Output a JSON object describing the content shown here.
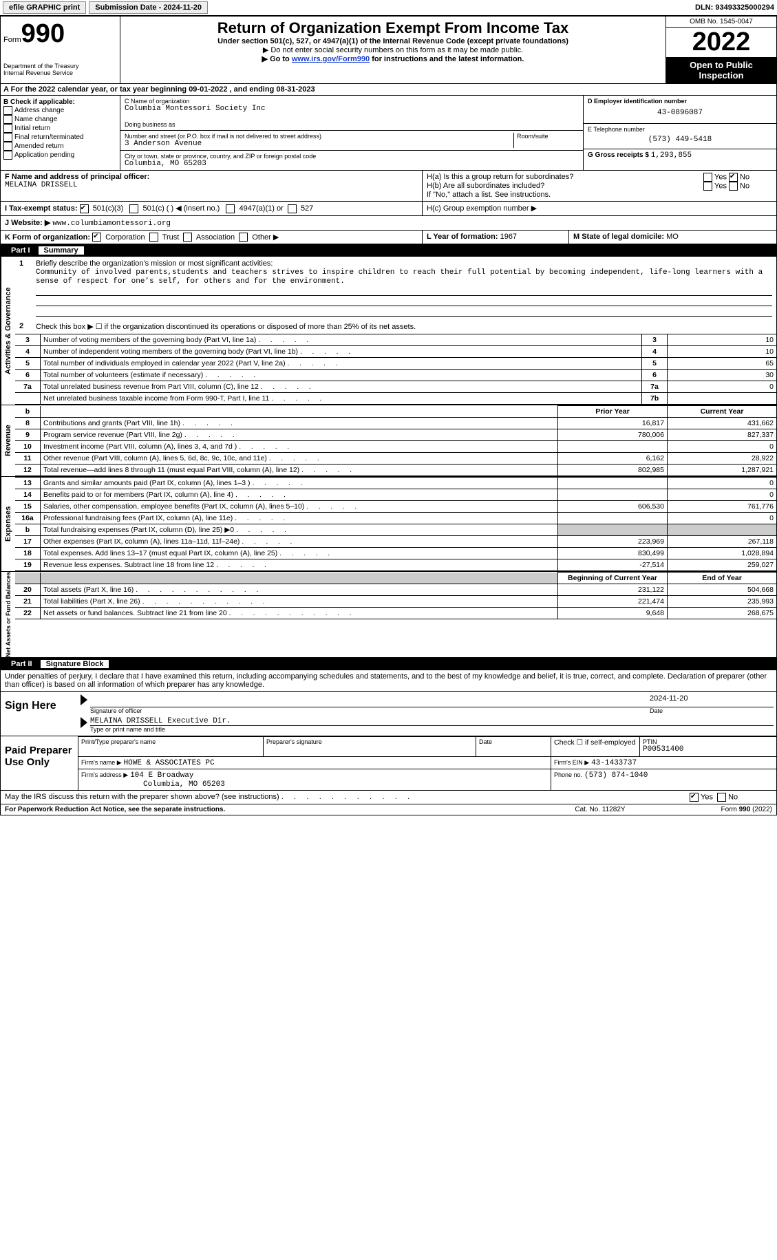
{
  "topbar": {
    "efile": "efile GRAPHIC print",
    "submission": "Submission Date - 2024-11-20",
    "dln": "DLN: 93493325000294"
  },
  "header": {
    "form_label": "Form",
    "form_num": "990",
    "dept": "Department of the Treasury",
    "irs": "Internal Revenue Service",
    "title": "Return of Organization Exempt From Income Tax",
    "subtitle": "Under section 501(c), 527, or 4947(a)(1) of the Internal Revenue Code (except private foundations)",
    "note1": "▶ Do not enter social security numbers on this form as it may be made public.",
    "note2_pre": "▶ Go to ",
    "note2_link": "www.irs.gov/Form990",
    "note2_post": " for instructions and the latest information.",
    "omb": "OMB No. 1545-0047",
    "year": "2022",
    "open": "Open to Public Inspection"
  },
  "lineA": "A  For the 2022 calendar year, or tax year beginning 09-01-2022    , and ending 08-31-2023",
  "colB": {
    "header": "B Check if applicable:",
    "items": [
      "Address change",
      "Name change",
      "Initial return",
      "Final return/terminated",
      "Amended return",
      "Application pending"
    ]
  },
  "colC": {
    "name_label": "C Name of organization",
    "name": "Columbia Montessori Society Inc",
    "dba_label": "Doing business as",
    "dba": "",
    "addr_label": "Number and street (or P.O. box if mail is not delivered to street address)",
    "room_label": "Room/suite",
    "addr": "3 Anderson Avenue",
    "city_label": "City or town, state or province, country, and ZIP or foreign postal code",
    "city": "Columbia, MO  65203"
  },
  "colD": {
    "ein_label": "D Employer identification number",
    "ein": "43-0896087",
    "phone_label": "E Telephone number",
    "phone": "(573) 449-5418",
    "gross_label": "G Gross receipts $",
    "gross": "1,293,855"
  },
  "rowF": {
    "label": "F  Name and address of principal officer:",
    "name": "MELAINA DRISSELL"
  },
  "rowH": {
    "ha_label": "H(a)  Is this a group return for subordinates?",
    "hb_label": "H(b)  Are all subordinates included?",
    "hb_note": "If \"No,\" attach a list. See instructions.",
    "hc_label": "H(c)  Group exemption number ▶",
    "yes": "Yes",
    "no": "No"
  },
  "rowI": {
    "label": "I    Tax-exempt status:",
    "opts": [
      "501(c)(3)",
      "501(c) (  ) ◀ (insert no.)",
      "4947(a)(1) or",
      "527"
    ]
  },
  "rowJ": {
    "label": "J   Website: ▶",
    "val": "www.columbiamontessori.org"
  },
  "rowK": {
    "label": "K Form of organization:",
    "opts": [
      "Corporation",
      "Trust",
      "Association",
      "Other ▶"
    ]
  },
  "rowL": {
    "label": "L Year of formation:",
    "val": "1967"
  },
  "rowM": {
    "label": "M State of legal domicile:",
    "val": "MO"
  },
  "part1": {
    "num": "Part I",
    "title": "Summary",
    "line1_label": "Briefly describe the organization's mission or most significant activities:",
    "line1_text": "Community of involved parents,students and teachers strives to inspire children to reach their full potential by becoming independent, life-long learners with a sense of respect for one's self, for others and for the environment.",
    "line2": "Check this box ▶ ☐ if the organization discontinued its operations or disposed of more than 25% of its net assets.",
    "vert_activities": "Activities & Governance",
    "vert_revenue": "Revenue",
    "vert_expenses": "Expenses",
    "vert_netassets": "Net Assets or Fund Balances",
    "rows_gov": [
      {
        "n": "3",
        "t": "Number of voting members of the governing body (Part VI, line 1a)",
        "rn": "3",
        "v": "10"
      },
      {
        "n": "4",
        "t": "Number of independent voting members of the governing body (Part VI, line 1b)",
        "rn": "4",
        "v": "10"
      },
      {
        "n": "5",
        "t": "Total number of individuals employed in calendar year 2022 (Part V, line 2a)",
        "rn": "5",
        "v": "65"
      },
      {
        "n": "6",
        "t": "Total number of volunteers (estimate if necessary)",
        "rn": "6",
        "v": "30"
      },
      {
        "n": "7a",
        "t": "Total unrelated business revenue from Part VIII, column (C), line 12",
        "rn": "7a",
        "v": "0"
      },
      {
        "n": "",
        "t": "Net unrelated business taxable income from Form 990-T, Part I, line 11",
        "rn": "7b",
        "v": ""
      }
    ],
    "header_py": "Prior Year",
    "header_cy": "Current Year",
    "rows_rev": [
      {
        "n": "8",
        "t": "Contributions and grants (Part VIII, line 1h)",
        "py": "16,817",
        "cy": "431,662"
      },
      {
        "n": "9",
        "t": "Program service revenue (Part VIII, line 2g)",
        "py": "780,006",
        "cy": "827,337"
      },
      {
        "n": "10",
        "t": "Investment income (Part VIII, column (A), lines 3, 4, and 7d )",
        "py": "",
        "cy": "0"
      },
      {
        "n": "11",
        "t": "Other revenue (Part VIII, column (A), lines 5, 6d, 8c, 9c, 10c, and 11e)",
        "py": "6,162",
        "cy": "28,922"
      },
      {
        "n": "12",
        "t": "Total revenue—add lines 8 through 11 (must equal Part VIII, column (A), line 12)",
        "py": "802,985",
        "cy": "1,287,921"
      }
    ],
    "rows_exp": [
      {
        "n": "13",
        "t": "Grants and similar amounts paid (Part IX, column (A), lines 1–3 )",
        "py": "",
        "cy": "0"
      },
      {
        "n": "14",
        "t": "Benefits paid to or for members (Part IX, column (A), line 4)",
        "py": "",
        "cy": "0"
      },
      {
        "n": "15",
        "t": "Salaries, other compensation, employee benefits (Part IX, column (A), lines 5–10)",
        "py": "606,530",
        "cy": "761,776"
      },
      {
        "n": "16a",
        "t": "Professional fundraising fees (Part IX, column (A), line 11e)",
        "py": "",
        "cy": "0"
      },
      {
        "n": "b",
        "t": "Total fundraising expenses (Part IX, column (D), line 25) ▶0",
        "py": "__shade__",
        "cy": "__shade__"
      },
      {
        "n": "17",
        "t": "Other expenses (Part IX, column (A), lines 11a–11d, 11f–24e)",
        "py": "223,969",
        "cy": "267,118"
      },
      {
        "n": "18",
        "t": "Total expenses. Add lines 13–17 (must equal Part IX, column (A), line 25)",
        "py": "830,499",
        "cy": "1,028,894"
      },
      {
        "n": "19",
        "t": "Revenue less expenses. Subtract line 18 from line 12",
        "py": "-27,514",
        "cy": "259,027"
      }
    ],
    "header_boy": "Beginning of Current Year",
    "header_eoy": "End of Year",
    "rows_net": [
      {
        "n": "20",
        "t": "Total assets (Part X, line 16)",
        "py": "231,122",
        "cy": "504,668"
      },
      {
        "n": "21",
        "t": "Total liabilities (Part X, line 26)",
        "py": "221,474",
        "cy": "235,993"
      },
      {
        "n": "22",
        "t": "Net assets or fund balances. Subtract line 21 from line 20",
        "py": "9,648",
        "cy": "268,675"
      }
    ]
  },
  "part2": {
    "num": "Part II",
    "title": "Signature Block",
    "penalty": "Under penalties of perjury, I declare that I have examined this return, including accompanying schedules and statements, and to the best of my knowledge and belief, it is true, correct, and complete. Declaration of preparer (other than officer) is based on all information of which preparer has any knowledge.",
    "sign_here": "Sign Here",
    "sig_officer": "Signature of officer",
    "sig_date": "2024-11-20",
    "date_label": "Date",
    "sig_name": "MELAINA DRISSELL Executive Dir.",
    "sig_name_label": "Type or print name and title",
    "paid": "Paid Preparer Use Only",
    "prep_name_label": "Print/Type preparer's name",
    "prep_sig_label": "Preparer's signature",
    "check_self": "Check ☐ if self-employed",
    "ptin_label": "PTIN",
    "ptin": "P00531400",
    "firm_name_label": "Firm's name    ▶",
    "firm_name": "HOWE & ASSOCIATES PC",
    "firm_ein_label": "Firm's EIN ▶",
    "firm_ein": "43-1433737",
    "firm_addr_label": "Firm's address ▶",
    "firm_addr1": "104 E Broadway",
    "firm_addr2": "Columbia, MO  65203",
    "firm_phone_label": "Phone no.",
    "firm_phone": "(573) 874-1040",
    "discuss": "May the IRS discuss this return with the preparer shown above? (see instructions)",
    "yes": "Yes",
    "no": "No"
  },
  "footer": {
    "left": "For Paperwork Reduction Act Notice, see the separate instructions.",
    "mid": "Cat. No. 11282Y",
    "right": "Form 990 (2022)"
  }
}
